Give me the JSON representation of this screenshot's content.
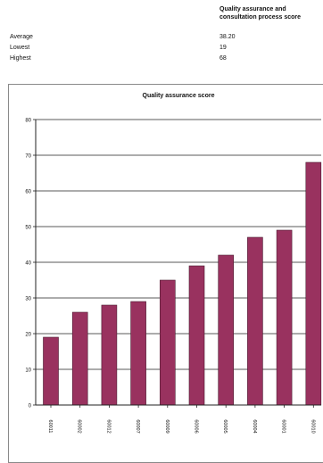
{
  "summary": {
    "header": "Quality assurance and consultation process score",
    "rows": [
      {
        "label": "Average",
        "value": "38.20"
      },
      {
        "label": "Lowest",
        "value": "19"
      },
      {
        "label": "Highest",
        "value": "68"
      }
    ]
  },
  "chart_data": {
    "type": "bar",
    "title": "Quality assurance score",
    "xlabel": "",
    "ylabel": "",
    "categories": [
      "60011",
      "60002",
      "60012",
      "60007",
      "60009",
      "60006",
      "60005",
      "60004",
      "60001",
      "60010"
    ],
    "values": [
      19,
      26,
      28,
      29,
      35,
      39,
      42,
      47,
      49,
      68
    ],
    "ylim": [
      0,
      80
    ],
    "yticks": [
      0,
      10,
      20,
      30,
      40,
      50,
      60,
      70,
      80
    ],
    "grid": true,
    "legend": "none",
    "bar_color": "#99325f"
  }
}
